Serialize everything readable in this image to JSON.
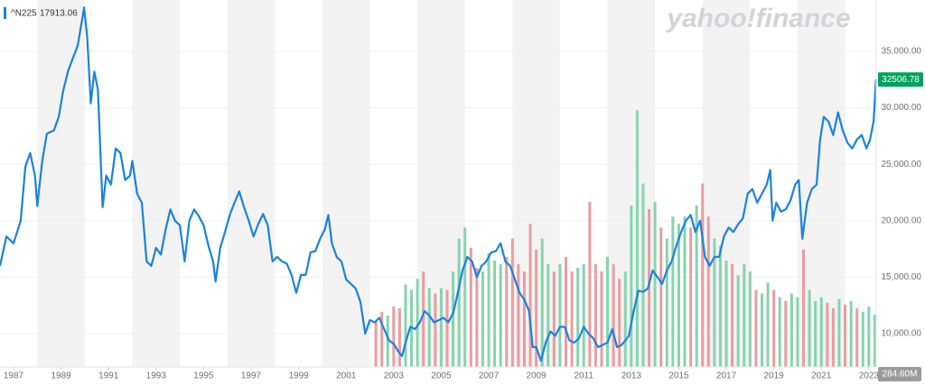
{
  "chart_data": {
    "type": "line",
    "watermark": "yahoo!finance",
    "xlim": [
      1986.43,
      2023.31
    ],
    "ylim": [
      7045,
      39553
    ],
    "xticks": [
      1987,
      1989,
      1991,
      1993,
      1995,
      1997,
      1999,
      2001,
      2003,
      2005,
      2007,
      2009,
      2011,
      2013,
      2015,
      2017,
      2019,
      2021,
      2023
    ],
    "yticks": [
      {
        "value": 10000,
        "label": "10,000.00"
      },
      {
        "value": 15000,
        "label": "15,000.00"
      },
      {
        "value": 20000,
        "label": "20,000.00"
      },
      {
        "value": 25000,
        "label": "25,000.00"
      },
      {
        "value": 30000,
        "label": "30,000.00"
      },
      {
        "value": 35000,
        "label": "35,000.00"
      }
    ],
    "grid": true,
    "band_color": "#f3f3f3",
    "tag_color": "#00a35b",
    "series": [
      {
        "name": "^N225",
        "legend_value": 17913.06,
        "color": "#1a82e0",
        "x": [
          1986.43,
          1986.7,
          1987.0,
          1987.3,
          1987.5,
          1987.7,
          1987.9,
          1988.0,
          1988.2,
          1988.4,
          1988.7,
          1988.9,
          1989.1,
          1989.3,
          1989.5,
          1989.7,
          1989.9,
          1989.97,
          1990.1,
          1990.25,
          1990.4,
          1990.55,
          1990.75,
          1990.9,
          1991.1,
          1991.3,
          1991.5,
          1991.7,
          1991.9,
          1992.0,
          1992.2,
          1992.4,
          1992.6,
          1992.8,
          1993.0,
          1993.2,
          1993.4,
          1993.6,
          1993.8,
          1994.0,
          1994.2,
          1994.4,
          1994.6,
          1994.8,
          1995.0,
          1995.2,
          1995.4,
          1995.5,
          1995.7,
          1995.9,
          1996.1,
          1996.3,
          1996.5,
          1996.7,
          1996.9,
          1997.1,
          1997.3,
          1997.5,
          1997.7,
          1997.9,
          1998.1,
          1998.3,
          1998.5,
          1998.7,
          1998.9,
          1999.1,
          1999.3,
          1999.5,
          1999.7,
          1999.9,
          2000.1,
          2000.25,
          2000.4,
          2000.6,
          2000.8,
          2001.0,
          2001.2,
          2001.4,
          2001.6,
          2001.8,
          2002.0,
          2002.2,
          2002.4,
          2002.6,
          2002.8,
          2003.0,
          2003.2,
          2003.35,
          2003.5,
          2003.7,
          2003.9,
          2004.1,
          2004.3,
          2004.5,
          2004.7,
          2004.9,
          2005.1,
          2005.3,
          2005.5,
          2005.7,
          2005.9,
          2006.1,
          2006.3,
          2006.5,
          2006.7,
          2006.9,
          2007.1,
          2007.3,
          2007.5,
          2007.7,
          2007.9,
          2008.1,
          2008.3,
          2008.5,
          2008.7,
          2008.85,
          2009.0,
          2009.2,
          2009.4,
          2009.6,
          2009.8,
          2010.0,
          2010.2,
          2010.4,
          2010.6,
          2010.8,
          2011.0,
          2011.2,
          2011.4,
          2011.6,
          2011.8,
          2012.0,
          2012.2,
          2012.4,
          2012.6,
          2012.9,
          2013.1,
          2013.3,
          2013.5,
          2013.7,
          2013.9,
          2014.1,
          2014.3,
          2014.5,
          2014.7,
          2014.9,
          2015.1,
          2015.3,
          2015.5,
          2015.7,
          2015.9,
          2016.1,
          2016.3,
          2016.5,
          2016.7,
          2016.9,
          2017.1,
          2017.3,
          2017.5,
          2017.7,
          2017.9,
          2018.1,
          2018.3,
          2018.5,
          2018.7,
          2018.85,
          2018.95,
          2019.1,
          2019.3,
          2019.5,
          2019.7,
          2019.9,
          2020.05,
          2020.2,
          2020.4,
          2020.6,
          2020.8,
          2020.95,
          2021.1,
          2021.3,
          2021.5,
          2021.7,
          2021.9,
          2022.1,
          2022.3,
          2022.5,
          2022.7,
          2022.9,
          2023.05,
          2023.2,
          2023.3
        ],
        "values": [
          16000,
          18600,
          18000,
          20000,
          24800,
          26000,
          24000,
          21300,
          25200,
          27700,
          28000,
          29200,
          31600,
          33300,
          34400,
          35500,
          38000,
          38900,
          36300,
          30400,
          33200,
          31600,
          21200,
          24000,
          23200,
          26400,
          26000,
          23600,
          24000,
          25300,
          22400,
          21600,
          16400,
          16000,
          17600,
          17000,
          19200,
          21000,
          20000,
          19600,
          16400,
          20000,
          21000,
          20400,
          19600,
          17800,
          16400,
          14600,
          17600,
          19000,
          20500,
          21600,
          22600,
          21200,
          20000,
          18600,
          19700,
          20600,
          19600,
          16400,
          16800,
          16400,
          16200,
          15200,
          13600,
          15200,
          15200,
          17200,
          17300,
          18400,
          19200,
          20500,
          18000,
          16800,
          16400,
          14800,
          14400,
          14000,
          12800,
          10000,
          11200,
          11000,
          11400,
          10400,
          9400,
          9100,
          8400,
          8000,
          9200,
          10600,
          10400,
          11000,
          12000,
          11600,
          11000,
          11200,
          11400,
          11000,
          11800,
          13600,
          15600,
          16800,
          16400,
          15000,
          16000,
          16400,
          17200,
          17300,
          18000,
          16400,
          16000,
          14800,
          13600,
          13000,
          12000,
          8800,
          8800,
          7600,
          9200,
          10200,
          9800,
          10600,
          10600,
          9400,
          9200,
          9600,
          10600,
          10000,
          9600,
          8800,
          9000,
          9200,
          10400,
          8800,
          9000,
          9800,
          12000,
          13800,
          13700,
          14000,
          15600,
          15000,
          14400,
          15600,
          16400,
          17800,
          19000,
          20000,
          20500,
          19000,
          20000,
          16800,
          16000,
          16800,
          16800,
          18600,
          19400,
          19000,
          19700,
          20200,
          22400,
          22800,
          21600,
          22400,
          23200,
          24500,
          20000,
          21600,
          20800,
          21000,
          21800,
          23200,
          23600,
          18400,
          21600,
          22800,
          23200,
          27200,
          29200,
          28800,
          27600,
          29600,
          28000,
          26900,
          26400,
          27200,
          27600,
          26400,
          27200,
          28800,
          32506.78
        ]
      }
    ],
    "volume": {
      "vlim": [
        0,
        2000
      ],
      "last_label": "284.60M",
      "tag_color": "#9a9a9a",
      "x": [
        2002.25,
        2002.5,
        2002.75,
        2003.0,
        2003.25,
        2003.5,
        2003.75,
        2004.0,
        2004.25,
        2004.5,
        2004.75,
        2005.0,
        2005.25,
        2005.5,
        2005.75,
        2006.0,
        2006.25,
        2006.5,
        2006.75,
        2007.0,
        2007.25,
        2007.5,
        2007.75,
        2008.0,
        2008.25,
        2008.5,
        2008.75,
        2009.0,
        2009.25,
        2009.5,
        2009.75,
        2010.0,
        2010.25,
        2010.5,
        2010.75,
        2011.0,
        2011.25,
        2011.5,
        2011.75,
        2012.0,
        2012.25,
        2012.5,
        2012.75,
        2013.0,
        2013.25,
        2013.5,
        2013.75,
        2014.0,
        2014.25,
        2014.5,
        2014.75,
        2015.0,
        2015.25,
        2015.5,
        2015.75,
        2016.0,
        2016.25,
        2016.5,
        2016.75,
        2017.0,
        2017.25,
        2017.5,
        2017.75,
        2018.0,
        2018.25,
        2018.5,
        2018.75,
        2019.0,
        2019.25,
        2019.5,
        2019.75,
        2020.0,
        2020.25,
        2020.5,
        2020.75,
        2021.0,
        2021.25,
        2021.5,
        2021.75,
        2022.0,
        2022.25,
        2022.5,
        2022.75,
        2023.0,
        2023.25
      ],
      "values": [
        250,
        300,
        280,
        330,
        320,
        450,
        420,
        480,
        520,
        430,
        400,
        430,
        420,
        520,
        700,
        760,
        650,
        540,
        520,
        620,
        580,
        560,
        600,
        700,
        560,
        520,
        780,
        640,
        700,
        560,
        520,
        560,
        600,
        520,
        540,
        560,
        900,
        560,
        520,
        600,
        560,
        480,
        520,
        880,
        1400,
        1000,
        860,
        900,
        760,
        700,
        820,
        780,
        820,
        760,
        880,
        1000,
        820,
        700,
        660,
        580,
        560,
        500,
        560,
        520,
        420,
        400,
        460,
        420,
        380,
        360,
        400,
        380,
        640,
        420,
        360,
        380,
        350,
        320,
        370,
        340,
        360,
        320,
        300,
        330,
        284.6
      ],
      "colors": [
        "#ec9c9c",
        "#ec9c9c",
        "#85d4ad",
        "#ec9c9c",
        "#ec9c9c",
        "#85d4ad",
        "#85d4ad",
        "#85d4ad",
        "#ec9c9c",
        "#85d4ad",
        "#ec9c9c",
        "#85d4ad",
        "#ec9c9c",
        "#85d4ad",
        "#85d4ad",
        "#85d4ad",
        "#ec9c9c",
        "#ec9c9c",
        "#85d4ad",
        "#85d4ad",
        "#85d4ad",
        "#85d4ad",
        "#ec9c9c",
        "#ec9c9c",
        "#ec9c9c",
        "#ec9c9c",
        "#ec9c9c",
        "#ec9c9c",
        "#85d4ad",
        "#85d4ad",
        "#ec9c9c",
        "#85d4ad",
        "#ec9c9c",
        "#ec9c9c",
        "#85d4ad",
        "#85d4ad",
        "#ec9c9c",
        "#ec9c9c",
        "#ec9c9c",
        "#85d4ad",
        "#ec9c9c",
        "#ec9c9c",
        "#85d4ad",
        "#85d4ad",
        "#85d4ad",
        "#85d4ad",
        "#ec9c9c",
        "#85d4ad",
        "#ec9c9c",
        "#85d4ad",
        "#85d4ad",
        "#85d4ad",
        "#85d4ad",
        "#ec9c9c",
        "#85d4ad",
        "#ec9c9c",
        "#ec9c9c",
        "#85d4ad",
        "#85d4ad",
        "#85d4ad",
        "#ec9c9c",
        "#85d4ad",
        "#85d4ad",
        "#85d4ad",
        "#ec9c9c",
        "#85d4ad",
        "#85d4ad",
        "#ec9c9c",
        "#85d4ad",
        "#ec9c9c",
        "#85d4ad",
        "#85d4ad",
        "#ec9c9c",
        "#85d4ad",
        "#85d4ad",
        "#85d4ad",
        "#ec9c9c",
        "#ec9c9c",
        "#85d4ad",
        "#ec9c9c",
        "#85d4ad",
        "#ec9c9c",
        "#85d4ad",
        "#85d4ad",
        "#85d4ad"
      ]
    }
  }
}
